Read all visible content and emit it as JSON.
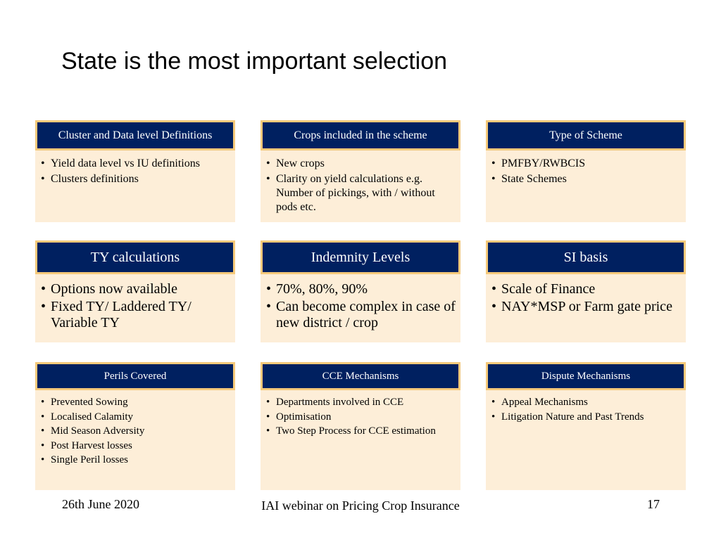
{
  "title": "State is the most important selection",
  "boxes": [
    {
      "header": "Cluster and Data level Definitions",
      "items": [
        "Yield data level vs IU definitions",
        " Clusters definitions"
      ]
    },
    {
      "header": "Crops included in the scheme",
      "items": [
        "New crops",
        "Clarity on yield calculations e.g. Number of pickings, with / without pods etc."
      ]
    },
    {
      "header": "Type of Scheme",
      "items": [
        "PMFBY/RWBCIS",
        "State Schemes"
      ]
    },
    {
      "header": "TY calculations",
      "items": [
        "Options now available",
        "Fixed TY/ Laddered TY/ Variable TY"
      ]
    },
    {
      "header": "Indemnity Levels",
      "items": [
        " 70%, 80%, 90%",
        " Can become complex in case of new district / crop"
      ]
    },
    {
      "header": "SI basis",
      "items": [
        "Scale of Finance",
        "NAY*MSP or Farm gate price"
      ]
    },
    {
      "header": "Perils Covered",
      "items": [
        "Prevented Sowing",
        "Localised Calamity",
        "Mid Season Adversity",
        "Post Harvest losses",
        "Single Peril losses"
      ]
    },
    {
      "header": "CCE Mechanisms",
      "items": [
        "Departments involved in CCE",
        "Optimisation",
        "Two Step Process for CCE estimation"
      ]
    },
    {
      "header": "Dispute Mechanisms",
      "items": [
        "Appeal Mechanisms",
        "Litigation Nature and Past Trends"
      ]
    }
  ],
  "footer": {
    "date": "26th June 2020",
    "center": "IAI webinar on Pricing Crop Insurance",
    "page": "17"
  },
  "colors": {
    "header_bg": "#002060",
    "header_border": "#f5c97a",
    "box_bg": "#fdeed8"
  }
}
